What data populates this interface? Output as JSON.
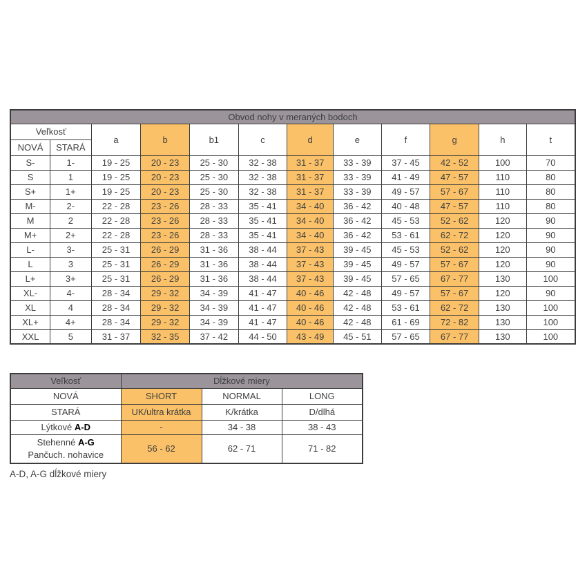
{
  "colors": {
    "header_gray": "#9b949b",
    "highlight_orange": "#fbc168",
    "new_red": "#e30613",
    "old_gray": "#9b9b9b",
    "border_dark": "#3c3c3c"
  },
  "size_table": {
    "title": "Obvod nohy v meraných bodoch",
    "size_label": "Veľkosť",
    "new_label": "NOVÁ",
    "old_label": "STARÁ",
    "columns": [
      "a",
      "b",
      "b1",
      "c",
      "d",
      "e",
      "f",
      "g",
      "h",
      "t"
    ],
    "highlight_columns": [
      "b",
      "d",
      "g"
    ],
    "rows": [
      {
        "nova": "S-",
        "stara": "1-",
        "values": [
          "19 - 25",
          "20 - 23",
          "25 - 30",
          "32 - 38",
          "31 - 37",
          "33 - 39",
          "37 - 45",
          "42 - 52",
          "100",
          "70"
        ]
      },
      {
        "nova": "S",
        "stara": "1",
        "values": [
          "19 - 25",
          "20 - 23",
          "25 - 30",
          "32 - 38",
          "31 - 37",
          "33 - 39",
          "41 - 49",
          "47 - 57",
          "110",
          "80"
        ]
      },
      {
        "nova": "S+",
        "stara": "1+",
        "values": [
          "19 - 25",
          "20 - 23",
          "25 - 30",
          "32 - 38",
          "31 - 37",
          "33 - 39",
          "49 - 57",
          "57 - 67",
          "110",
          "80"
        ]
      },
      {
        "nova": "M-",
        "stara": "2-",
        "values": [
          "22 - 28",
          "23 - 26",
          "28 - 33",
          "35 - 41",
          "34 - 40",
          "36 - 42",
          "40 - 48",
          "47 - 57",
          "110",
          "80"
        ]
      },
      {
        "nova": "M",
        "stara": "2",
        "values": [
          "22 - 28",
          "23 - 26",
          "28 - 33",
          "35 - 41",
          "34 - 40",
          "36 - 42",
          "45 - 53",
          "52 - 62",
          "120",
          "90"
        ]
      },
      {
        "nova": "M+",
        "stara": "2+",
        "values": [
          "22 - 28",
          "23 - 26",
          "28 - 33",
          "35 - 41",
          "34 - 40",
          "36 - 42",
          "53 - 61",
          "62 - 72",
          "120",
          "90"
        ]
      },
      {
        "nova": "L-",
        "stara": "3-",
        "values": [
          "25 - 31",
          "26 - 29",
          "31 - 36",
          "38 - 44",
          "37 - 43",
          "39 - 45",
          "45 - 53",
          "52 - 62",
          "120",
          "90"
        ]
      },
      {
        "nova": "L",
        "stara": "3",
        "values": [
          "25 - 31",
          "26 - 29",
          "31 - 36",
          "38 - 44",
          "37 - 43",
          "39 - 45",
          "49 - 57",
          "57 - 67",
          "120",
          "90"
        ]
      },
      {
        "nova": "L+",
        "stara": "3+",
        "values": [
          "25 - 31",
          "26 - 29",
          "31 - 36",
          "38 - 44",
          "37 - 43",
          "39 - 45",
          "57 - 65",
          "67 - 77",
          "130",
          "100"
        ]
      },
      {
        "nova": "XL-",
        "stara": "4-",
        "values": [
          "28 - 34",
          "29 - 32",
          "34 - 39",
          "41 - 47",
          "40 - 46",
          "42 - 48",
          "49 - 57",
          "57 - 67",
          "120",
          "90"
        ]
      },
      {
        "nova": "XL",
        "stara": "4",
        "values": [
          "28 - 34",
          "29 - 32",
          "34 - 39",
          "41 - 47",
          "40 - 46",
          "42 - 48",
          "53 - 61",
          "62 - 72",
          "130",
          "100"
        ]
      },
      {
        "nova": "XL+",
        "stara": "4+",
        "values": [
          "28 - 34",
          "29 - 32",
          "34 - 39",
          "41 - 47",
          "40 - 46",
          "42 - 48",
          "61 - 69",
          "72 - 82",
          "130",
          "100"
        ]
      },
      {
        "nova": "XXL",
        "stara": "5",
        "values": [
          "31 - 37",
          "32 - 35",
          "37 - 42",
          "44 - 50",
          "43 - 49",
          "45 - 51",
          "57 - 65",
          "67 - 77",
          "130",
          "100"
        ]
      }
    ]
  },
  "length_table": {
    "size_header": "Veľkosť",
    "title": "Dĺžkové miery",
    "new_row": [
      "NOVÁ",
      "SHORT",
      "NORMAL",
      "LONG"
    ],
    "old_row": [
      "STARÁ",
      "UK/ultra krátka",
      "K/krátka",
      "D/dlhá"
    ],
    "rows": [
      {
        "label": "Lýtkové",
        "label_bold": "A-D",
        "label_line2": "",
        "values": [
          "-",
          "34 - 38",
          "38 - 43"
        ]
      },
      {
        "label": "Stehenné",
        "label_bold": "A-G",
        "label_line2": "Pančuch. nohavice",
        "values": [
          "56 - 62",
          "62 - 71",
          "71 - 82"
        ]
      }
    ]
  },
  "footnote": "A-D, A-G dĺžkové miery"
}
